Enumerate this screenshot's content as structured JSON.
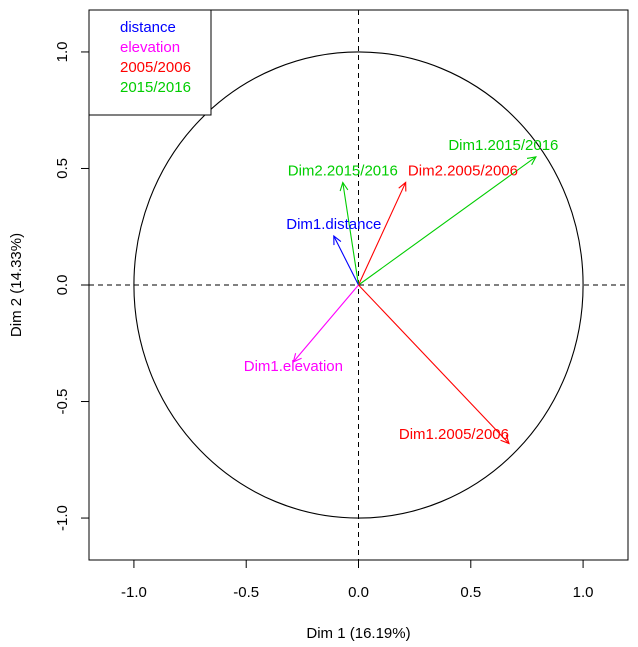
{
  "chart_data": {
    "type": "scatter",
    "subtype": "pca-variables-factor-map",
    "xlabel": "Dim 1 (16.19%)",
    "ylabel": "Dim 2 (14.33%)",
    "xlim": [
      -1.2,
      1.2
    ],
    "ylim": [
      -1.18,
      1.18
    ],
    "xticks": [
      {
        "value": -1.0,
        "label": "-1.0"
      },
      {
        "value": -0.5,
        "label": "-0.5"
      },
      {
        "value": 0.0,
        "label": "0.0"
      },
      {
        "value": 0.5,
        "label": "0.5"
      },
      {
        "value": 1.0,
        "label": "1.0"
      }
    ],
    "yticks": [
      {
        "value": -1.0,
        "label": "-1.0"
      },
      {
        "value": -0.5,
        "label": "-0.5"
      },
      {
        "value": 0.0,
        "label": "0.0"
      },
      {
        "value": 0.5,
        "label": "0.5"
      },
      {
        "value": 1.0,
        "label": "1.0"
      }
    ],
    "circle_radius": 1.0,
    "reference_lines": {
      "x": 0,
      "y": 0,
      "style": "dashed"
    },
    "grid": false,
    "legend": {
      "placement": "top-left",
      "entries": [
        {
          "label": "distance",
          "color": "#0000ff"
        },
        {
          "label": "elevation",
          "color": "#ff00ff"
        },
        {
          "label": "2005/2006",
          "color": "#ff0000"
        },
        {
          "label": "2015/2016",
          "color": "#00cd00"
        }
      ]
    },
    "vectors": [
      {
        "label": "Dim1.2015/2016",
        "x": 0.79,
        "y": 0.55,
        "color": "#00cd00",
        "label_x": 0.4,
        "label_y": 0.58,
        "label_anchor": "start"
      },
      {
        "label": "Dim2.2005/2006",
        "x": 0.21,
        "y": 0.44,
        "color": "#ff0000",
        "label_x": 0.22,
        "label_y": 0.47,
        "label_anchor": "start"
      },
      {
        "label": "Dim2.2015/2016",
        "x": -0.07,
        "y": 0.44,
        "color": "#00cd00",
        "label_x": -0.07,
        "label_y": 0.47,
        "label_anchor": "middle"
      },
      {
        "label": "Dim1.distance",
        "x": -0.11,
        "y": 0.21,
        "color": "#0000ff",
        "label_x": -0.11,
        "label_y": 0.24,
        "label_anchor": "middle"
      },
      {
        "label": "Dim1.elevation",
        "x": -0.29,
        "y": -0.33,
        "color": "#ff00ff",
        "label_x": -0.29,
        "label_y": -0.37,
        "label_anchor": "middle"
      },
      {
        "label": "Dim1.2005/2006",
        "x": 0.67,
        "y": -0.68,
        "color": "#ff0000",
        "label_x": 0.67,
        "label_y": -0.66,
        "label_anchor": "end"
      }
    ]
  }
}
